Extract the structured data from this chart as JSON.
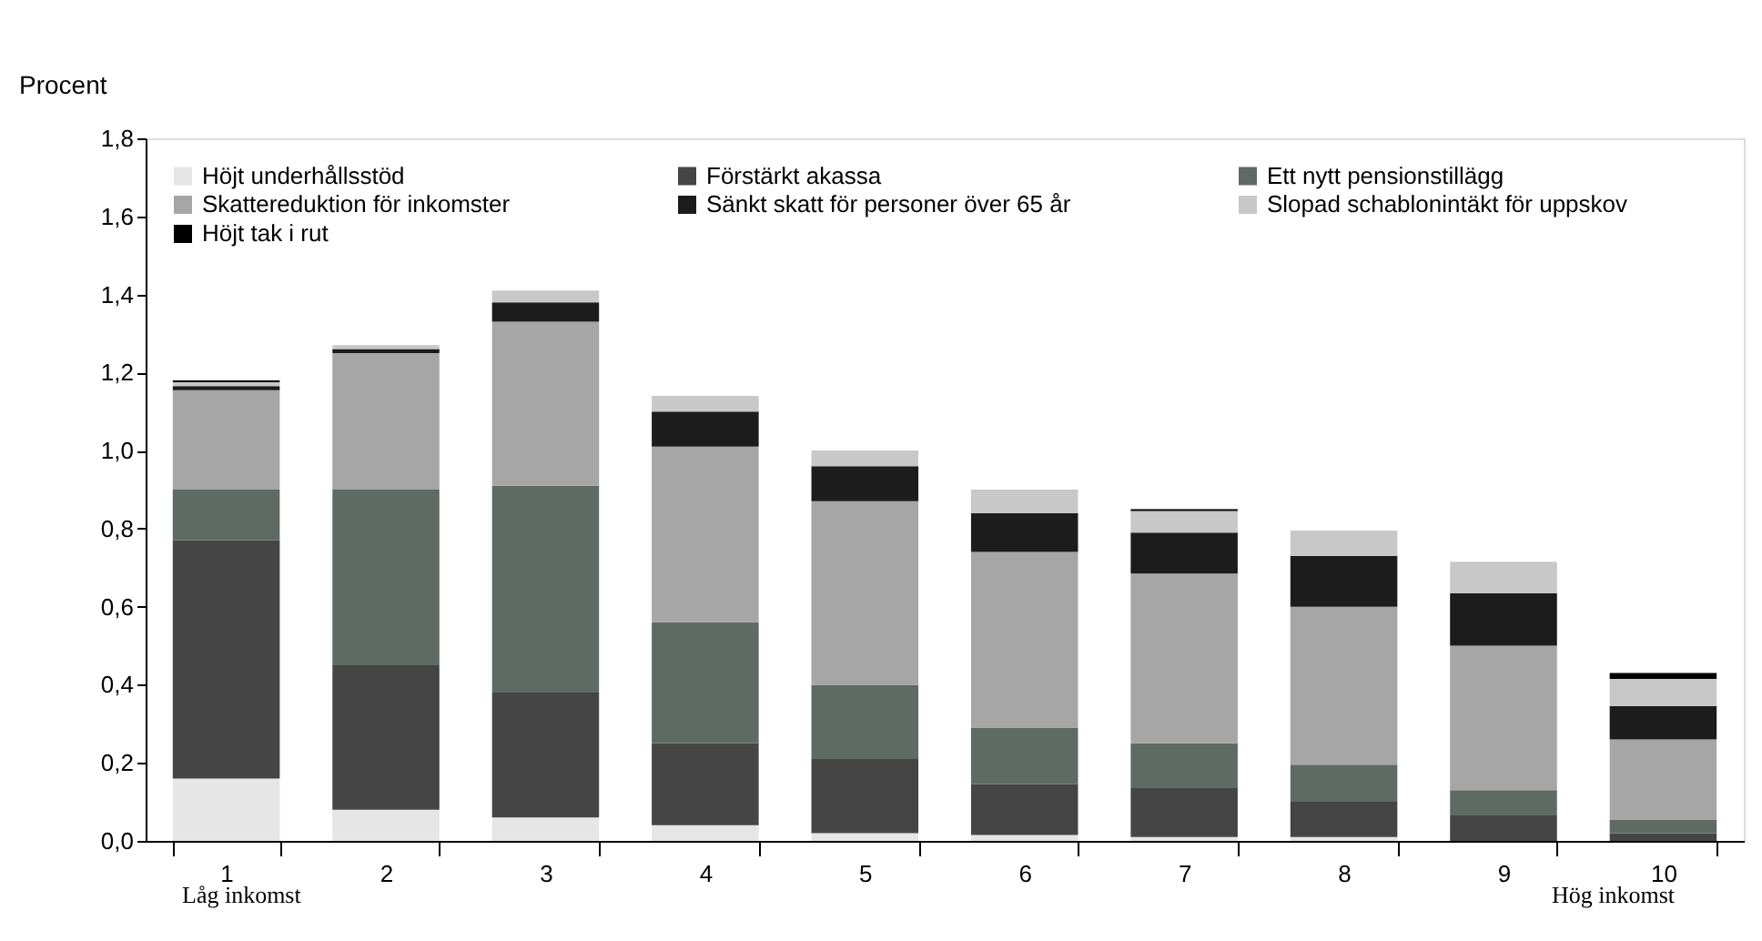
{
  "chart_data": {
    "type": "bar",
    "stacked": true,
    "ylabel": "Procent",
    "categories": [
      "1",
      "2",
      "3",
      "4",
      "5",
      "6",
      "7",
      "8",
      "9",
      "10"
    ],
    "series": [
      {
        "name": "Höjt underhållsstöd",
        "color": "#e6e6e6",
        "values": [
          0.16,
          0.08,
          0.06,
          0.04,
          0.02,
          0.015,
          0.01,
          0.01,
          null,
          null
        ]
      },
      {
        "name": "Förstärkt akassa",
        "color": "#454545",
        "values": [
          0.61,
          0.37,
          0.32,
          0.21,
          0.19,
          0.13,
          0.125,
          0.09,
          0.065,
          0.02
        ]
      },
      {
        "name": "Ett nytt pensionstillägg",
        "color": "#5e6b65",
        "values": [
          0.13,
          0.45,
          0.53,
          0.31,
          0.19,
          0.145,
          0.115,
          0.095,
          0.065,
          0.035
        ]
      },
      {
        "name": "Skattereduktion för inkomster",
        "color": "#a6a6a6",
        "values": [
          0.255,
          0.35,
          0.42,
          0.45,
          0.47,
          0.45,
          0.435,
          0.405,
          0.37,
          0.205
        ]
      },
      {
        "name": "Sänkt skatt för personer över 65 år",
        "color": "#1c1c1c",
        "values": [
          0.01,
          0.01,
          0.05,
          0.09,
          0.09,
          0.1,
          0.105,
          0.13,
          0.135,
          0.085
        ]
      },
      {
        "name": "Slopad schablonintäkt för uppskov",
        "color": "#c8c8c8",
        "values": [
          0.01,
          0.01,
          0.03,
          0.04,
          0.04,
          0.06,
          0.055,
          0.065,
          0.08,
          0.07
        ]
      },
      {
        "name": "Höjt tak i rut",
        "color": "#000000",
        "values": [
          0.005,
          0,
          0,
          0,
          0,
          0,
          0.005,
          0,
          0,
          0.015
        ]
      }
    ],
    "ylim": [
      0,
      1.8
    ],
    "yticks": [
      {
        "value": 0,
        "label": "0,0"
      },
      {
        "value": 0.2,
        "label": "0,2"
      },
      {
        "value": 0.4,
        "label": "0,4"
      },
      {
        "value": 0.6,
        "label": "0,6"
      },
      {
        "value": 0.8,
        "label": "0,8"
      },
      {
        "value": 1.0,
        "label": "1,0"
      },
      {
        "value": 1.2,
        "label": "1,2"
      },
      {
        "value": 1.4,
        "label": "1,4"
      },
      {
        "value": 1.6,
        "label": "1,6"
      },
      {
        "value": 1.8,
        "label": "1,8"
      }
    ],
    "grid": false,
    "legend": "top left",
    "annotations": [
      "Låg inkomst",
      "Hög inkomst"
    ]
  }
}
